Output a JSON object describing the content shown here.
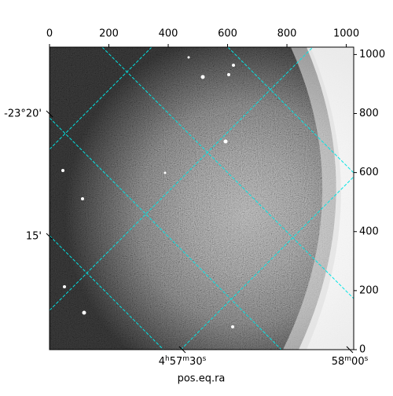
{
  "chart_data": {
    "type": "image",
    "xlabel": "pos.eq.ra",
    "xlim": [
      0,
      1025
    ],
    "ylim": [
      0,
      1025
    ],
    "xticks": [
      0,
      200,
      400,
      600,
      800,
      1000
    ],
    "yticks": [
      0,
      200,
      400,
      600,
      800,
      1000
    ],
    "ra_tick_labels": [
      "4h57m30s",
      "58m00s"
    ],
    "dec_tick_labels": [
      "-23°20'",
      "15'"
    ],
    "grid_color": "#00e5e5"
  }
}
